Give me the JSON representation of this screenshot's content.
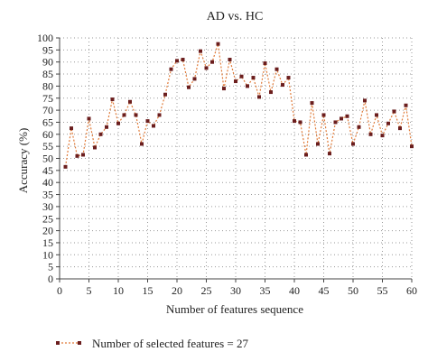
{
  "chart_data": {
    "type": "line",
    "title": "AD vs. HC",
    "xlabel": "Number of features sequence",
    "ylabel": "Accuracy (%)",
    "xlim": [
      0,
      60
    ],
    "ylim": [
      0,
      100
    ],
    "xticks": [
      0,
      5,
      10,
      15,
      20,
      25,
      30,
      35,
      40,
      45,
      50,
      55,
      60
    ],
    "yticks": [
      0,
      5,
      10,
      15,
      20,
      25,
      30,
      35,
      40,
      45,
      50,
      55,
      60,
      65,
      70,
      75,
      80,
      85,
      90,
      95,
      100
    ],
    "grid": true,
    "legend_position": "bottom-left",
    "series": [
      {
        "name": "Number of selected features = 27",
        "color": "#e07b39",
        "marker_color": "#6b1e1e",
        "x": [
          1,
          2,
          3,
          4,
          5,
          6,
          7,
          8,
          9,
          10,
          11,
          12,
          13,
          14,
          15,
          16,
          17,
          18,
          19,
          20,
          21,
          22,
          23,
          24,
          25,
          26,
          27,
          28,
          29,
          30,
          31,
          32,
          33,
          34,
          35,
          36,
          37,
          38,
          39,
          40,
          41,
          42,
          43,
          44,
          45,
          46,
          47,
          48,
          49,
          50,
          51,
          52,
          53,
          54,
          55,
          56,
          57,
          58,
          59,
          60
        ],
        "y": [
          46.5,
          62.5,
          51,
          51.5,
          66.5,
          54.5,
          60,
          63,
          74.5,
          64.5,
          68,
          73.5,
          68,
          56,
          65.5,
          63.5,
          68,
          76.5,
          87,
          90.5,
          91,
          79.5,
          83,
          94.5,
          87.5,
          90,
          97.5,
          79,
          91,
          82,
          84,
          80,
          83.5,
          75.5,
          89.5,
          77.5,
          87,
          80.5,
          83.5,
          65.5,
          65,
          51.5,
          73,
          56,
          68,
          52,
          65,
          66.5,
          67.5,
          56,
          63,
          74,
          60,
          68,
          59.5,
          64.5,
          69.5,
          62.5,
          72,
          55
        ]
      }
    ]
  }
}
